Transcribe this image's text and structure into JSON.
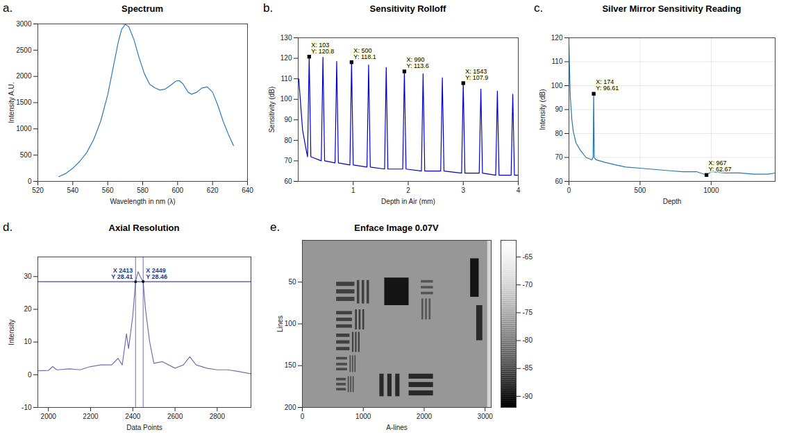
{
  "chart_data": [
    {
      "panel": "a.",
      "type": "line",
      "title": "Spectrum",
      "x_label": "Wavelength in nm (λ)",
      "y_label": "Intensity A.U.",
      "x": [
        532,
        536,
        540,
        544,
        548,
        552,
        556,
        560,
        563,
        566,
        568,
        570,
        572,
        575,
        578,
        581,
        584,
        587,
        590,
        593,
        596,
        599,
        601,
        603,
        606,
        608,
        611,
        614,
        617,
        620,
        623,
        626,
        629,
        632
      ],
      "series": [
        {
          "color": "#2b7bba",
          "values": [
            90,
            150,
            250,
            380,
            550,
            800,
            1150,
            1650,
            2150,
            2650,
            2900,
            2990,
            2950,
            2700,
            2350,
            2050,
            1850,
            1780,
            1740,
            1760,
            1830,
            1910,
            1920,
            1860,
            1700,
            1660,
            1700,
            1780,
            1800,
            1700,
            1450,
            1150,
            900,
            680
          ]
        }
      ],
      "xlim": [
        520,
        640
      ],
      "xticks": [
        520,
        540,
        560,
        580,
        600,
        620,
        640
      ],
      "ylim": [
        0,
        3000
      ],
      "yticks": [
        0,
        500,
        1000,
        1500,
        2000,
        2500,
        3000
      ],
      "grid": false
    },
    {
      "panel": "b.",
      "type": "line",
      "title": "Sensitivity Rolloff",
      "x_label": "Depth in Air (mm)",
      "y_label": "Sensitivity (dB)",
      "x": [
        0.01,
        0.08,
        0.14,
        0.17,
        0.2,
        0.23,
        0.42,
        0.45,
        0.48,
        0.67,
        0.7,
        0.73,
        0.94,
        0.97,
        1.0,
        1.25,
        1.28,
        1.31,
        1.57,
        1.6,
        1.63,
        1.9,
        1.93,
        1.96,
        2.24,
        2.27,
        2.3,
        2.59,
        2.62,
        2.65,
        2.97,
        3.0,
        3.03,
        3.29,
        3.32,
        3.35,
        3.59,
        3.62,
        3.65,
        3.87,
        3.9,
        3.93,
        4.0
      ],
      "series": [
        {
          "color": "#0000c8",
          "values": [
            110,
            85,
            76,
            72,
            120.8,
            72,
            70,
            120.5,
            70,
            69,
            118.5,
            69,
            68,
            118.1,
            68,
            67,
            116.8,
            67,
            66,
            115.5,
            66,
            66,
            113.6,
            66,
            65,
            112.5,
            65,
            65,
            110.5,
            65,
            64,
            107.9,
            64,
            64,
            105,
            64,
            63,
            104,
            63,
            63,
            102.5,
            63,
            63
          ]
        }
      ],
      "xlim": [
        0,
        4
      ],
      "xticks": [
        1,
        2,
        3,
        4
      ],
      "ylim": [
        60,
        130
      ],
      "yticks": [
        60,
        70,
        80,
        90,
        100,
        110,
        120,
        130
      ],
      "grid": false,
      "annotations": [
        {
          "x": 0.2,
          "y": 120.8,
          "text": "X: 103\nY: 120.8",
          "marker": "square"
        },
        {
          "x": 0.97,
          "y": 118.1,
          "text": "X: 500\nY: 118.1",
          "marker": "square"
        },
        {
          "x": 1.93,
          "y": 113.6,
          "text": "X: 990\nY: 113.6",
          "marker": "square"
        },
        {
          "x": 3.0,
          "y": 107.9,
          "text": "X: 1543\nY: 107.9",
          "marker": "square"
        }
      ]
    },
    {
      "panel": "c.",
      "type": "line",
      "title": "Silver Mirror Sensitivity Reading",
      "x_label": "Depth",
      "y_label": "Intensity (dB)",
      "x": [
        0,
        5,
        10,
        20,
        30,
        50,
        80,
        120,
        160,
        170,
        174,
        178,
        190,
        250,
        320,
        400,
        500,
        600,
        700,
        800,
        900,
        967,
        1000,
        1100,
        1200,
        1300,
        1400,
        1450
      ],
      "series": [
        {
          "color": "#1f77b4",
          "values": [
            117,
            105,
            95,
            86,
            81,
            76,
            73,
            70,
            69,
            70,
            96.61,
            70,
            69,
            68,
            67,
            66,
            65.5,
            65,
            64.5,
            64,
            64,
            62.67,
            64,
            63.5,
            63.5,
            63,
            63,
            63.5
          ]
        }
      ],
      "xlim": [
        0,
        1450
      ],
      "xticks": [
        0,
        500,
        1000
      ],
      "ylim": [
        60,
        120
      ],
      "yticks": [
        60,
        70,
        80,
        90,
        100,
        110,
        120
      ],
      "grid": true,
      "annotations": [
        {
          "x": 174,
          "y": 96.61,
          "text": "X: 174\nY: 96.61",
          "marker": "square"
        },
        {
          "x": 967,
          "y": 62.67,
          "text": "X: 967\nY: 62.67",
          "marker": "square"
        }
      ]
    },
    {
      "panel": "d.",
      "type": "line",
      "title": "Axial Resolution",
      "x_label": "Data Points",
      "y_label": "Intensity",
      "x": [
        1950,
        2000,
        2020,
        2040,
        2100,
        2150,
        2200,
        2250,
        2300,
        2330,
        2350,
        2370,
        2380,
        2390,
        2400,
        2413,
        2425,
        2435,
        2449,
        2460,
        2480,
        2500,
        2540,
        2600,
        2640,
        2670,
        2700,
        2750,
        2800,
        2850,
        2900,
        2960
      ],
      "series": [
        {
          "color": "#6f6fb0",
          "values": [
            1.2,
            1.3,
            2.5,
            1.5,
            1.8,
            1.5,
            2.5,
            3,
            3,
            5,
            3,
            12.5,
            8,
            13,
            18,
            28.41,
            31.5,
            30,
            28.46,
            20,
            10,
            3.5,
            4,
            2,
            3,
            5.5,
            3,
            2,
            1.5,
            1.5,
            1,
            0.3
          ]
        }
      ],
      "xlim": [
        1950,
        2960
      ],
      "xticks": [
        2000,
        2200,
        2400,
        2600,
        2800
      ],
      "ylim": [
        -10,
        36
      ],
      "yticks": [
        -10,
        0,
        10,
        20,
        30
      ],
      "grid": false,
      "annotations": [
        {
          "x": 2413,
          "y": 28.41,
          "text": "X 2413\nY 28.41",
          "marker": "crosshair"
        },
        {
          "x": 2449,
          "y": 28.46,
          "text": "X 2449\nY 28.46",
          "marker": "crosshair"
        }
      ]
    },
    {
      "panel": "e.",
      "type": "heatmap",
      "title": "Enface Image 0.07V",
      "x_label": "A-lines",
      "y_label": "Lines",
      "xlim": [
        0,
        3100
      ],
      "xticks": [
        0,
        1000,
        2000,
        3000
      ],
      "ylim": [
        0,
        200
      ],
      "yticks": [
        50,
        100,
        150,
        200
      ],
      "color": "gray",
      "colorbar_lim": [
        -92,
        -62
      ],
      "colorbar_ticks": [
        -90,
        -85,
        -80,
        -75,
        -70,
        -65
      ],
      "cells": [
        [
          0,
          3100,
          0,
          200,
          -77
        ],
        [
          560,
          860,
          50,
          55,
          -86
        ],
        [
          560,
          860,
          59,
          64,
          -86
        ],
        [
          560,
          860,
          68,
          73,
          -86
        ],
        [
          900,
          940,
          48,
          76,
          -86
        ],
        [
          980,
          1020,
          48,
          76,
          -86
        ],
        [
          1060,
          1100,
          48,
          76,
          -86
        ],
        [
          1350,
          1750,
          45,
          78,
          -90
        ],
        [
          1950,
          2150,
          48,
          51,
          -84
        ],
        [
          1950,
          2150,
          55,
          58,
          -84
        ],
        [
          1950,
          2150,
          62,
          65,
          -84
        ],
        [
          1960,
          1990,
          70,
          95,
          -84
        ],
        [
          2020,
          2050,
          70,
          95,
          -84
        ],
        [
          2080,
          2110,
          70,
          95,
          -84
        ],
        [
          2760,
          2900,
          22,
          68,
          -90
        ],
        [
          2860,
          2960,
          78,
          120,
          -88
        ],
        [
          560,
          820,
          85,
          89,
          -86
        ],
        [
          560,
          820,
          93,
          97,
          -86
        ],
        [
          560,
          820,
          101,
          105,
          -86
        ],
        [
          870,
          900,
          83,
          107,
          -86
        ],
        [
          930,
          960,
          83,
          107,
          -86
        ],
        [
          990,
          1020,
          83,
          107,
          -86
        ],
        [
          560,
          780,
          112,
          116,
          -86
        ],
        [
          560,
          780,
          120,
          124,
          -86
        ],
        [
          560,
          780,
          128,
          132,
          -86
        ],
        [
          820,
          845,
          110,
          134,
          -86
        ],
        [
          870,
          895,
          110,
          134,
          -86
        ],
        [
          920,
          945,
          110,
          134,
          -86
        ],
        [
          560,
          740,
          140,
          143,
          -85
        ],
        [
          560,
          740,
          147,
          150,
          -85
        ],
        [
          560,
          740,
          153,
          156,
          -85
        ],
        [
          780,
          800,
          138,
          158,
          -85
        ],
        [
          820,
          840,
          138,
          158,
          -85
        ],
        [
          860,
          880,
          138,
          158,
          -85
        ],
        [
          560,
          720,
          165,
          168,
          -85
        ],
        [
          560,
          720,
          171,
          174,
          -85
        ],
        [
          560,
          720,
          177,
          180,
          -85
        ],
        [
          750,
          770,
          163,
          182,
          -85
        ],
        [
          790,
          810,
          163,
          182,
          -85
        ],
        [
          830,
          850,
          163,
          182,
          -85
        ],
        [
          1270,
          1340,
          160,
          187,
          -88
        ],
        [
          1400,
          1470,
          160,
          187,
          -88
        ],
        [
          1530,
          1600,
          160,
          187,
          -88
        ],
        [
          1750,
          2150,
          160,
          166,
          -88
        ],
        [
          1750,
          2150,
          170,
          176,
          -88
        ],
        [
          1750,
          2150,
          180,
          186,
          -88
        ],
        [
          3040,
          3100,
          0,
          200,
          -70
        ]
      ]
    }
  ]
}
